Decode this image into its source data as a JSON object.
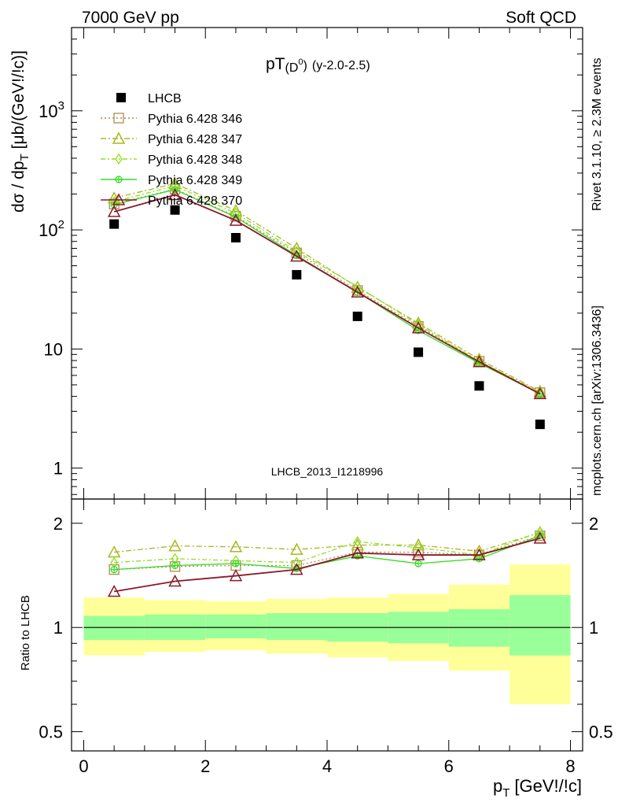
{
  "header": {
    "left": "7000 GeV pp",
    "right": "Soft QCD"
  },
  "side_labels": {
    "rivet": "Rivet 3.1.10, ≥ 2.3M events",
    "mcplots": "mcplots.cern.ch [arXiv:1306.3436]"
  },
  "watermark": "LHCB_2013_I1218996",
  "chart_data": [
    {
      "type": "line",
      "title_main": "pT",
      "title_sub": "(D",
      "title_sup": "0",
      "title_close": ")",
      "title_extra": "(y-2.0-2.5)",
      "ylabel_main": "dσ / dp",
      "ylabel_sub": "T",
      "ylabel_unit": "[μb/(GeV!/!c)]",
      "yscale": "log",
      "ylim": [
        0.55,
        5000
      ],
      "xlim": [
        -0.2,
        8.2
      ],
      "xticks": [
        0,
        2,
        4,
        6,
        8
      ],
      "xtick_labels": [
        "0",
        "2",
        "4",
        "6",
        "8"
      ],
      "yticks": [
        1,
        10,
        100,
        1000
      ],
      "ytick_labels": [
        {
          "base": "1",
          "exp": ""
        },
        {
          "base": "10",
          "exp": ""
        },
        {
          "base": "10",
          "exp": "2"
        },
        {
          "base": "10",
          "exp": "3"
        }
      ],
      "legend_position": "top-left",
      "x": [
        0.5,
        1.5,
        2.5,
        3.5,
        4.5,
        5.5,
        6.5,
        7.5
      ],
      "data": {
        "name": "LHCB",
        "values": [
          112,
          147,
          86,
          42,
          18.8,
          9.4,
          4.9,
          2.33
        ]
      },
      "series": [
        {
          "name": "Pythia 6.428 346",
          "color": "#b08a50",
          "marker": "square",
          "dash": "2,3",
          "values": [
            165,
            220,
            130,
            64,
            31,
            15.5,
            7.9,
            4.3
          ]
        },
        {
          "name": "Pythia 6.428 347",
          "color": "#a8b820",
          "marker": "triangle",
          "dash": "7,3,2,3",
          "values": [
            185,
            245,
            145,
            70,
            33,
            16.5,
            8.2,
            4.4
          ]
        },
        {
          "name": "Pythia 6.428 348",
          "color": "#90e020",
          "marker": "diamond",
          "dash": "6,3,2,3",
          "values": [
            172,
            235,
            138,
            66,
            33.5,
            16,
            7.9,
            4.3
          ]
        },
        {
          "name": "Pythia 6.428 349",
          "color": "#33dd22",
          "marker": "circlecross",
          "dash": "",
          "values": [
            163,
            218,
            128,
            61,
            30,
            14.3,
            7.6,
            4.2
          ]
        },
        {
          "name": "Pythia 6.428 370",
          "color": "#8b1a2a",
          "marker": "triangle",
          "dash": "",
          "values": [
            142,
            197,
            120,
            60,
            30,
            15,
            7.8,
            4.2
          ]
        }
      ]
    },
    {
      "type": "line",
      "ylabel": "Ratio to LHCB",
      "yscale": "log",
      "ylim": [
        0.44,
        2.35
      ],
      "yticks": [
        0.5,
        1,
        2
      ],
      "ytick_labels": [
        "0.5",
        "1",
        "2"
      ],
      "xlabel_main": "p",
      "xlabel_sub": "T",
      "xlabel_unit": "[GeV!/!c]",
      "bands": {
        "x_edges": [
          0,
          1,
          2,
          3,
          4,
          5,
          6,
          7,
          8
        ],
        "inner_low": [
          0.92,
          0.92,
          0.93,
          0.92,
          0.91,
          0.9,
          0.88,
          0.83
        ],
        "inner_high": [
          1.08,
          1.09,
          1.09,
          1.1,
          1.1,
          1.11,
          1.13,
          1.24
        ],
        "outer_low": [
          0.83,
          0.85,
          0.86,
          0.84,
          0.82,
          0.8,
          0.75,
          0.6
        ],
        "outer_high": [
          1.22,
          1.2,
          1.19,
          1.21,
          1.22,
          1.25,
          1.33,
          1.52
        ],
        "inner_color": "#99ff99",
        "outer_color": "#ffff99"
      },
      "series": [
        {
          "name": "Pythia 6.428 346",
          "values": [
            1.47,
            1.5,
            1.51,
            1.51,
            1.65,
            1.65,
            1.62,
            1.84
          ]
        },
        {
          "name": "Pythia 6.428 347",
          "values": [
            1.65,
            1.72,
            1.71,
            1.68,
            1.73,
            1.73,
            1.66,
            1.88
          ]
        },
        {
          "name": "Pythia 6.428 348",
          "values": [
            1.54,
            1.58,
            1.56,
            1.54,
            1.77,
            1.7,
            1.62,
            1.89
          ]
        },
        {
          "name": "Pythia 6.428 349",
          "values": [
            1.47,
            1.51,
            1.53,
            1.48,
            1.61,
            1.53,
            1.58,
            1.84
          ]
        },
        {
          "name": "Pythia 6.428 370",
          "values": [
            1.27,
            1.36,
            1.41,
            1.47,
            1.64,
            1.62,
            1.62,
            1.81
          ]
        }
      ]
    }
  ]
}
